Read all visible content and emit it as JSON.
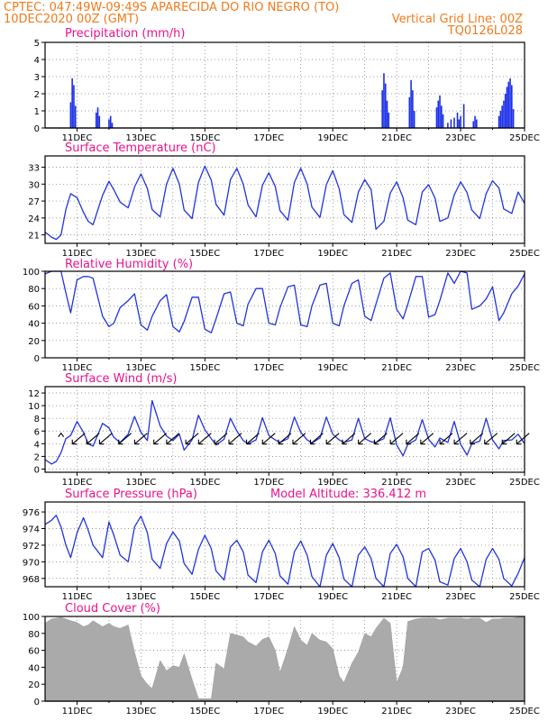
{
  "header": {
    "line1": "CPTEC:   047:49W-09:49S  APARECIDA DO RIO NEGRO (TO)",
    "line2_left": "10DEC2020 00Z (GMT)",
    "line2_right": "Vertical Grid Line: 00Z",
    "line3_right": "TQ0126L028",
    "model_altitude": "Model Altitude: 336.412 m"
  },
  "x_ticks": [
    "11DEC",
    "13DEC",
    "15DEC",
    "17DEC",
    "19DEC",
    "21DEC",
    "23DEC",
    "25DEC"
  ],
  "colors": {
    "line": "#2233dd",
    "bar": "#1a2ee8",
    "cloud": "#aaaaaa",
    "title": "#e8138c",
    "header": "#f07a1a"
  },
  "chart_data": [
    {
      "type": "bar",
      "title": "Precipitation (mm/h)",
      "xlim": [
        10.0,
        25.0
      ],
      "ylim": [
        0,
        5
      ],
      "yticks": [
        0,
        1,
        2,
        3,
        4,
        5
      ],
      "x": [
        10.8,
        10.85,
        10.9,
        10.95,
        11.6,
        11.65,
        11.7,
        12.0,
        12.05,
        12.1,
        20.55,
        20.6,
        20.65,
        20.7,
        20.75,
        21.4,
        21.45,
        21.5,
        21.55,
        22.25,
        22.3,
        22.35,
        22.4,
        22.45,
        22.6,
        22.7,
        22.8,
        22.9,
        22.95,
        23.0,
        23.1,
        23.4,
        23.45,
        23.5,
        24.2,
        24.25,
        24.3,
        24.35,
        24.4,
        24.45,
        24.5,
        24.55,
        24.6,
        24.65
      ],
      "values": [
        1.5,
        2.9,
        2.5,
        1.3,
        0.9,
        1.2,
        0.7,
        0.5,
        0.7,
        0.3,
        2.2,
        3.2,
        2.6,
        1.6,
        0.9,
        1.8,
        2.8,
        2.2,
        1.0,
        1.2,
        1.6,
        1.9,
        1.3,
        0.8,
        0.3,
        0.5,
        0.6,
        0.9,
        0.5,
        0.7,
        1.4,
        0.4,
        0.7,
        0.5,
        0.7,
        1.0,
        1.3,
        1.6,
        2.0,
        2.4,
        2.7,
        2.9,
        2.5,
        1.1
      ]
    },
    {
      "type": "line",
      "title": "Surface Temperature (nC)",
      "xlim": [
        10.0,
        25.0
      ],
      "ylim": [
        19.5,
        35
      ],
      "yticks": [
        21,
        24,
        27,
        30,
        33
      ],
      "x": [
        10.0,
        10.2,
        10.35,
        10.5,
        10.65,
        10.8,
        11.0,
        11.2,
        11.35,
        11.5,
        11.8,
        12.0,
        12.15,
        12.35,
        12.6,
        12.8,
        13.0,
        13.2,
        13.35,
        13.6,
        13.8,
        14.0,
        14.2,
        14.35,
        14.6,
        14.8,
        15.0,
        15.2,
        15.35,
        15.6,
        15.8,
        16.0,
        16.2,
        16.35,
        16.6,
        16.8,
        17.0,
        17.2,
        17.35,
        17.6,
        17.8,
        18.0,
        18.2,
        18.35,
        18.6,
        18.8,
        19.0,
        19.2,
        19.35,
        19.6,
        19.8,
        20.0,
        20.2,
        20.35,
        20.6,
        20.8,
        21.0,
        21.2,
        21.35,
        21.6,
        21.8,
        22.0,
        22.2,
        22.35,
        22.6,
        22.8,
        23.0,
        23.2,
        23.35,
        23.6,
        23.8,
        24.0,
        24.2,
        24.35,
        24.6,
        24.8,
        25.0
      ],
      "series": [
        {
          "values": [
            21.5,
            20.6,
            20.2,
            21.0,
            25.5,
            28.3,
            27.6,
            25.0,
            23.4,
            22.8,
            28.0,
            30.5,
            29.0,
            26.8,
            25.8,
            29.5,
            31.8,
            29.2,
            25.5,
            24.2,
            30.0,
            32.8,
            30.0,
            25.4,
            23.9,
            30.3,
            33.2,
            30.7,
            26.4,
            24.5,
            30.8,
            32.8,
            30.0,
            26.3,
            24.2,
            29.8,
            32.0,
            29.6,
            25.3,
            23.6,
            30.3,
            32.8,
            30.0,
            25.9,
            24.1,
            29.9,
            32.4,
            29.2,
            24.6,
            23.2,
            28.6,
            30.8,
            29.0,
            22.0,
            23.4,
            28.4,
            30.4,
            27.6,
            23.6,
            22.8,
            28.6,
            29.9,
            27.5,
            23.4,
            24.0,
            28.1,
            30.4,
            28.5,
            25.4,
            23.9,
            28.3,
            30.6,
            29.3,
            25.6,
            24.8,
            28.6,
            26.6
          ]
        }
      ]
    },
    {
      "type": "line",
      "title": "Relative Humidity (%)",
      "xlim": [
        10.0,
        25.0
      ],
      "ylim": [
        0,
        100
      ],
      "yticks": [
        0,
        20,
        40,
        60,
        80,
        100
      ],
      "x": [
        10.0,
        10.2,
        10.35,
        10.5,
        10.65,
        10.8,
        11.0,
        11.2,
        11.35,
        11.5,
        11.8,
        12.0,
        12.15,
        12.35,
        12.6,
        12.8,
        13.0,
        13.2,
        13.35,
        13.6,
        13.8,
        14.0,
        14.2,
        14.35,
        14.6,
        14.8,
        15.0,
        15.2,
        15.35,
        15.6,
        15.8,
        16.0,
        16.2,
        16.35,
        16.6,
        16.8,
        17.0,
        17.2,
        17.35,
        17.6,
        17.8,
        18.0,
        18.2,
        18.35,
        18.6,
        18.8,
        19.0,
        19.2,
        19.35,
        19.6,
        19.8,
        20.0,
        20.2,
        20.35,
        20.6,
        20.8,
        21.0,
        21.2,
        21.35,
        21.6,
        21.8,
        22.0,
        22.2,
        22.35,
        22.6,
        22.8,
        23.0,
        23.2,
        23.35,
        23.6,
        23.8,
        24.0,
        24.2,
        24.35,
        24.6,
        24.8,
        25.0
      ],
      "series": [
        {
          "values": [
            97,
            100,
            100,
            100,
            75,
            52,
            90,
            94,
            94,
            92,
            48,
            36,
            40,
            58,
            66,
            74,
            38,
            32,
            48,
            66,
            73,
            36,
            30,
            42,
            70,
            70,
            33,
            29,
            45,
            74,
            76,
            40,
            37,
            62,
            80,
            80,
            40,
            38,
            58,
            82,
            84,
            38,
            36,
            60,
            84,
            86,
            40,
            37,
            60,
            86,
            90,
            48,
            43,
            62,
            92,
            98,
            56,
            45,
            62,
            94,
            94,
            47,
            50,
            66,
            98,
            86,
            100,
            98,
            56,
            60,
            68,
            82,
            43,
            52,
            74,
            83,
            97
          ]
        }
      ]
    },
    {
      "type": "line",
      "title": "Surface Wind (m/s)",
      "xlim": [
        10.0,
        25.0
      ],
      "ylim": [
        -0.5,
        13
      ],
      "yticks": [
        0,
        2,
        4,
        6,
        8,
        10,
        12
      ],
      "x": [
        10.0,
        10.2,
        10.35,
        10.5,
        10.65,
        10.8,
        11.0,
        11.2,
        11.35,
        11.5,
        11.8,
        12.0,
        12.15,
        12.35,
        12.6,
        12.8,
        13.0,
        13.2,
        13.35,
        13.6,
        13.8,
        14.0,
        14.2,
        14.35,
        14.6,
        14.8,
        15.0,
        15.2,
        15.35,
        15.6,
        15.8,
        16.0,
        16.2,
        16.35,
        16.6,
        16.8,
        17.0,
        17.2,
        17.35,
        17.6,
        17.8,
        18.0,
        18.2,
        18.35,
        18.6,
        18.8,
        19.0,
        19.2,
        19.35,
        19.6,
        19.8,
        20.0,
        20.2,
        20.35,
        20.6,
        20.8,
        21.0,
        21.2,
        21.35,
        21.6,
        21.8,
        22.0,
        22.2,
        22.35,
        22.6,
        22.8,
        23.0,
        23.2,
        23.35,
        23.6,
        23.8,
        24.0,
        24.2,
        24.35,
        24.6,
        24.8,
        25.0
      ],
      "series": [
        {
          "values": [
            1.5,
            0.8,
            1.2,
            2.6,
            4.8,
            5.3,
            7.5,
            5.8,
            4.0,
            3.6,
            7.2,
            6.5,
            5.0,
            4.2,
            5.5,
            8.3,
            5.8,
            4.5,
            10.8,
            6.8,
            5.2,
            4.5,
            5.5,
            3.0,
            4.6,
            8.5,
            6.2,
            4.8,
            3.8,
            4.7,
            8.0,
            6.0,
            4.5,
            4.0,
            4.6,
            8.1,
            5.3,
            4.6,
            4.2,
            4.8,
            8.2,
            5.8,
            4.6,
            4.1,
            4.9,
            8.2,
            5.5,
            4.6,
            4.2,
            4.6,
            8.0,
            4.8,
            4.3,
            4.2,
            4.8,
            8.1,
            3.8,
            2.1,
            3.9,
            4.6,
            7.8,
            4.7,
            3.5,
            4.9,
            4.2,
            7.5,
            3.9,
            2.2,
            4.0,
            4.4,
            8.0,
            4.6,
            3.2,
            4.5,
            4.6,
            5.5,
            4.0
          ]
        }
      ],
      "arrows": [
        {
          "x": 10.5,
          "dir": "N"
        },
        {
          "x": 11.05,
          "dir": "SW"
        },
        {
          "x": 11.5,
          "dir": "SW"
        },
        {
          "x": 11.9,
          "dir": "SW"
        },
        {
          "x": 12.5,
          "dir": "SW"
        },
        {
          "x": 13.0,
          "dir": "SW"
        },
        {
          "x": 13.6,
          "dir": "SW"
        },
        {
          "x": 14.0,
          "dir": "SW"
        },
        {
          "x": 14.6,
          "dir": "SW"
        },
        {
          "x": 15.0,
          "dir": "SW"
        },
        {
          "x": 15.5,
          "dir": "SW"
        },
        {
          "x": 15.95,
          "dir": "SW"
        },
        {
          "x": 16.5,
          "dir": "SW"
        },
        {
          "x": 17.0,
          "dir": "SW"
        },
        {
          "x": 17.5,
          "dir": "SW"
        },
        {
          "x": 17.95,
          "dir": "SW"
        },
        {
          "x": 18.5,
          "dir": "SW"
        },
        {
          "x": 19.0,
          "dir": "SW"
        },
        {
          "x": 19.5,
          "dir": "SW"
        },
        {
          "x": 20.0,
          "dir": "SW"
        },
        {
          "x": 20.5,
          "dir": "SW"
        },
        {
          "x": 21.0,
          "dir": "SW"
        },
        {
          "x": 21.5,
          "dir": "SW"
        },
        {
          "x": 21.95,
          "dir": "SW"
        },
        {
          "x": 22.55,
          "dir": "SW"
        },
        {
          "x": 23.0,
          "dir": "SW"
        },
        {
          "x": 23.5,
          "dir": "SW"
        },
        {
          "x": 23.95,
          "dir": "SW"
        },
        {
          "x": 24.5,
          "dir": "SW"
        },
        {
          "x": 24.95,
          "dir": "SW"
        }
      ]
    },
    {
      "type": "line",
      "title": "Surface Pressure (hPa)",
      "xlim": [
        10.0,
        25.0
      ],
      "ylim": [
        967,
        977.2
      ],
      "yticks": [
        968,
        970,
        972,
        974,
        976
      ],
      "x": [
        10.0,
        10.2,
        10.35,
        10.5,
        10.65,
        10.8,
        11.0,
        11.2,
        11.35,
        11.5,
        11.8,
        12.0,
        12.15,
        12.35,
        12.6,
        12.8,
        13.0,
        13.2,
        13.35,
        13.6,
        13.8,
        14.0,
        14.2,
        14.35,
        14.6,
        14.8,
        15.0,
        15.2,
        15.35,
        15.6,
        15.8,
        16.0,
        16.2,
        16.35,
        16.6,
        16.8,
        17.0,
        17.2,
        17.35,
        17.6,
        17.8,
        18.0,
        18.2,
        18.35,
        18.6,
        18.8,
        19.0,
        19.2,
        19.35,
        19.6,
        19.8,
        20.0,
        20.2,
        20.35,
        20.6,
        20.8,
        21.0,
        21.2,
        21.35,
        21.6,
        21.8,
        22.0,
        22.2,
        22.35,
        22.6,
        22.8,
        23.0,
        23.2,
        23.35,
        23.6,
        23.8,
        24.0,
        24.2,
        24.35,
        24.6,
        24.8,
        25.0
      ],
      "series": [
        {
          "values": [
            974.5,
            975.0,
            975.6,
            974.2,
            972.0,
            970.5,
            973.5,
            975.3,
            973.8,
            972.0,
            970.5,
            974.8,
            973.2,
            970.8,
            970.0,
            974.2,
            975.5,
            973.5,
            970.3,
            969.2,
            972.2,
            973.6,
            972.5,
            969.8,
            968.5,
            971.5,
            973.2,
            971.6,
            968.9,
            967.8,
            971.8,
            972.6,
            971.2,
            968.4,
            967.5,
            971.2,
            972.6,
            971.0,
            968.3,
            967.3,
            971.2,
            972.5,
            970.8,
            968.2,
            967.0,
            970.8,
            972.2,
            970.5,
            967.9,
            966.9,
            970.8,
            971.8,
            970.4,
            968.0,
            966.8,
            971.0,
            972.1,
            970.6,
            968.0,
            967.0,
            971.2,
            971.6,
            970.2,
            967.6,
            967.2,
            970.4,
            971.6,
            970.0,
            967.8,
            966.8,
            970.3,
            971.6,
            970.3,
            968.0,
            967.1,
            968.6,
            970.5
          ]
        }
      ]
    },
    {
      "type": "area",
      "title": "Cloud Cover (%)",
      "xlim": [
        10.0,
        25.0
      ],
      "ylim": [
        0,
        100
      ],
      "yticks": [
        0,
        20,
        40,
        60,
        80,
        100
      ],
      "x": [
        10.0,
        10.2,
        10.35,
        10.5,
        10.65,
        10.8,
        11.0,
        11.2,
        11.35,
        11.5,
        11.8,
        12.0,
        12.15,
        12.35,
        12.6,
        12.8,
        13.0,
        13.2,
        13.35,
        13.6,
        13.8,
        14.0,
        14.2,
        14.35,
        14.6,
        14.8,
        15.0,
        15.2,
        15.35,
        15.6,
        15.8,
        16.0,
        16.2,
        16.35,
        16.6,
        16.8,
        17.0,
        17.2,
        17.35,
        17.6,
        17.8,
        18.0,
        18.2,
        18.35,
        18.6,
        18.8,
        19.0,
        19.2,
        19.35,
        19.6,
        19.8,
        20.0,
        20.2,
        20.35,
        20.6,
        20.8,
        21.0,
        21.2,
        21.35,
        21.6,
        21.8,
        22.0,
        22.2,
        22.35,
        22.6,
        22.8,
        23.0,
        23.2,
        23.35,
        23.6,
        23.8,
        24.0,
        24.2,
        24.35,
        24.6,
        24.8,
        25.0
      ],
      "series": [
        {
          "values": [
            92,
            97,
            98,
            99,
            97,
            95,
            93,
            88,
            90,
            95,
            88,
            92,
            88,
            86,
            90,
            58,
            30,
            20,
            15,
            48,
            36,
            42,
            40,
            56,
            26,
            3,
            3,
            3,
            45,
            38,
            80,
            78,
            76,
            70,
            65,
            73,
            76,
            60,
            34,
            62,
            88,
            72,
            66,
            80,
            72,
            70,
            62,
            30,
            22,
            45,
            58,
            80,
            76,
            86,
            98,
            92,
            22,
            40,
            94,
            97,
            98,
            98,
            98,
            96,
            98,
            98,
            98,
            97,
            98,
            98,
            93,
            97,
            97,
            98,
            98,
            99,
            99
          ]
        }
      ]
    }
  ]
}
